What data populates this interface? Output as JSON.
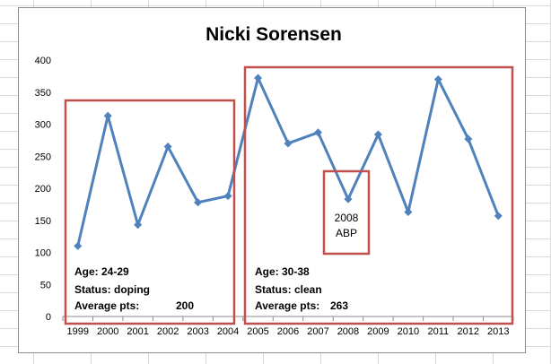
{
  "chart_data": {
    "type": "line",
    "title": "Nicki Sorensen",
    "xlabel": "",
    "ylabel": "",
    "categories": [
      "1999",
      "2000",
      "2001",
      "2002",
      "2003",
      "2004",
      "2005",
      "2006",
      "2007",
      "2008",
      "2009",
      "2010",
      "2011",
      "2012",
      "2013"
    ],
    "series": [
      {
        "values": [
          110,
          313,
          143,
          265,
          178,
          188,
          372,
          270,
          287,
          183,
          284,
          163,
          370,
          277,
          157
        ]
      }
    ],
    "ylim": [
      0,
      400
    ],
    "yticks": [
      "0",
      "50",
      "100",
      "150",
      "200",
      "250",
      "300",
      "350",
      "400"
    ],
    "grid": false,
    "legend": "none",
    "colors": {
      "line": "#4f81bd",
      "box": "#c0504d"
    },
    "annotations": {
      "period1": {
        "age": "Age: 24-29",
        "status": "Status: doping",
        "avg_label": "Average pts:",
        "avg_value": "200"
      },
      "period2": {
        "age": "Age: 30-38",
        "status": "Status: clean",
        "avg_label": "Average pts:",
        "avg_value": "263"
      },
      "abp": {
        "year": "2008",
        "text": "ABP"
      }
    }
  }
}
